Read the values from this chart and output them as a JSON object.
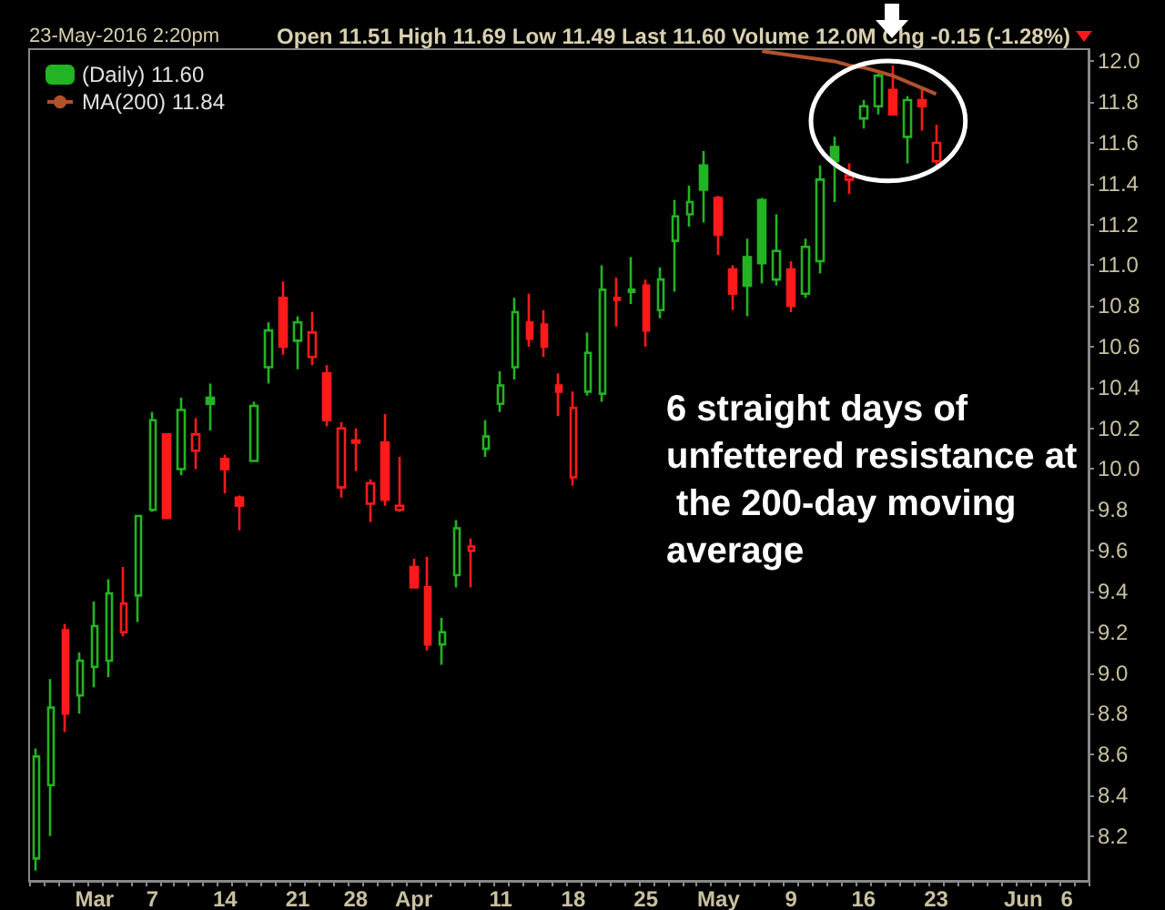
{
  "chart_data": {
    "type": "candlestick",
    "annotations": [
      "23-May-2016 2:20pm",
      "Open 11.51 High 11.69 Low 11.49 Last 11.60 Volume 12.0M Chg -0.15 (-1.28%)",
      "6 straight days of unfettered resistance at the 200-day moving average"
    ],
    "categories": [
      null,
      null,
      null,
      null,
      "Mar",
      null,
      null,
      null,
      "7",
      null,
      null,
      null,
      null,
      "14",
      null,
      null,
      null,
      null,
      "21",
      null,
      null,
      null,
      "28",
      null,
      null,
      null,
      "Apr",
      null,
      null,
      null,
      null,
      null,
      "11",
      null,
      null,
      null,
      null,
      "18",
      null,
      null,
      null,
      null,
      "25",
      null,
      null,
      null,
      null,
      "May",
      null,
      null,
      null,
      null,
      "9",
      null,
      null,
      null,
      null,
      "16",
      null,
      null,
      null,
      null,
      "23",
      null,
      null,
      null,
      null,
      null,
      "Jun",
      null,
      null,
      "6",
      null
    ],
    "series": [
      {
        "type": "candlestick",
        "name": "(Daily) 11.60",
        "ohlc": [
          [
            8.09,
            8.63,
            8.03,
            8.59
          ],
          [
            8.45,
            8.97,
            8.2,
            8.83
          ],
          [
            9.21,
            9.24,
            8.71,
            8.8
          ],
          [
            8.89,
            9.1,
            8.8,
            9.06
          ],
          [
            9.03,
            9.35,
            8.93,
            9.23
          ],
          [
            9.06,
            9.46,
            8.98,
            9.39
          ],
          [
            9.2,
            9.52,
            9.18,
            9.34
          ],
          [
            9.38,
            9.77,
            9.25,
            9.77
          ],
          [
            9.8,
            10.28,
            9.79,
            10.24
          ],
          [
            10.17,
            10.17,
            9.76,
            9.76
          ],
          [
            10.0,
            10.35,
            9.97,
            10.29
          ],
          [
            10.09,
            10.25,
            10.0,
            10.17
          ],
          [
            10.35,
            10.42,
            10.19,
            10.32
          ],
          [
            10.05,
            10.07,
            9.88,
            10.0
          ],
          [
            9.86,
            9.87,
            9.7,
            9.82
          ],
          [
            10.04,
            10.33,
            10.04,
            10.31
          ],
          [
            10.5,
            10.72,
            10.42,
            10.68
          ],
          [
            10.84,
            10.92,
            10.56,
            10.6
          ],
          [
            10.63,
            10.75,
            10.49,
            10.72
          ],
          [
            10.55,
            10.77,
            10.51,
            10.67
          ],
          [
            10.47,
            10.51,
            10.21,
            10.24
          ],
          [
            9.91,
            10.23,
            9.86,
            10.2
          ],
          [
            10.14,
            10.2,
            9.99,
            10.13
          ],
          [
            9.83,
            9.95,
            9.74,
            9.93
          ],
          [
            10.13,
            10.27,
            9.82,
            9.85
          ],
          [
            9.8,
            10.06,
            9.79,
            9.82
          ],
          [
            9.52,
            9.56,
            9.42,
            9.42
          ],
          [
            9.42,
            9.57,
            9.11,
            9.14
          ],
          [
            9.14,
            9.27,
            9.04,
            9.2
          ],
          [
            9.48,
            9.75,
            9.42,
            9.71
          ],
          [
            9.6,
            9.66,
            9.42,
            9.62
          ],
          [
            10.1,
            10.24,
            10.06,
            10.16
          ],
          [
            10.32,
            10.48,
            10.28,
            10.41
          ],
          [
            10.5,
            10.84,
            10.44,
            10.77
          ],
          [
            10.72,
            10.86,
            10.6,
            10.64
          ],
          [
            10.71,
            10.78,
            10.55,
            10.6
          ],
          [
            10.41,
            10.47,
            10.26,
            10.38
          ],
          [
            9.96,
            10.38,
            9.92,
            10.3
          ],
          [
            10.38,
            10.67,
            10.36,
            10.57
          ],
          [
            10.37,
            11.0,
            10.33,
            10.88
          ],
          [
            10.84,
            10.94,
            10.7,
            10.83
          ],
          [
            10.88,
            11.04,
            10.81,
            10.87
          ],
          [
            10.9,
            10.93,
            10.6,
            10.68
          ],
          [
            10.78,
            10.99,
            10.74,
            10.93
          ],
          [
            11.12,
            11.32,
            10.87,
            11.24
          ],
          [
            11.25,
            11.39,
            11.19,
            11.31
          ],
          [
            11.49,
            11.56,
            11.21,
            11.37
          ],
          [
            11.33,
            11.34,
            11.05,
            11.15
          ],
          [
            10.98,
            11.0,
            10.78,
            10.86
          ],
          [
            11.04,
            11.13,
            10.75,
            10.9
          ],
          [
            11.32,
            11.33,
            10.91,
            11.01
          ],
          [
            10.93,
            11.25,
            10.9,
            11.07
          ],
          [
            10.98,
            11.02,
            10.77,
            10.8
          ],
          [
            10.86,
            11.13,
            10.84,
            11.09
          ],
          [
            11.02,
            11.49,
            10.96,
            11.42
          ],
          [
            11.58,
            11.63,
            11.31,
            11.51
          ],
          [
            11.42,
            11.5,
            11.35,
            11.44
          ],
          [
            11.72,
            11.81,
            11.67,
            11.78
          ],
          [
            11.78,
            11.94,
            11.74,
            11.93
          ],
          [
            11.86,
            11.98,
            11.74,
            11.74
          ],
          [
            11.63,
            11.83,
            11.5,
            11.81
          ],
          [
            11.81,
            11.87,
            11.66,
            11.78
          ],
          [
            11.51,
            11.69,
            11.49,
            11.6
          ],
          null,
          null,
          null,
          null,
          null,
          null,
          null,
          null,
          null,
          null
        ],
        "colors": [
          "#22b422",
          "#22b422",
          "#ff1a1a",
          "#22b422",
          "#22b422",
          "#22b422",
          "#ff1a1a",
          "#22b422",
          "#22b422",
          "#ff1a1a",
          "#22b422",
          "#ff1a1a",
          "#22b422",
          "#ff1a1a",
          "#ff1a1a",
          "#22b422",
          "#22b422",
          "#ff1a1a",
          "#22b422",
          "#ff1a1a",
          "#ff1a1a",
          "#ff1a1a",
          "#ff1a1a",
          "#ff1a1a",
          "#ff1a1a",
          "#ff1a1a",
          "#ff1a1a",
          "#ff1a1a",
          "#22b422",
          "#22b422",
          "#ff1a1a",
          "#22b422",
          "#22b422",
          "#22b422",
          "#ff1a1a",
          "#ff1a1a",
          "#ff1a1a",
          "#ff1a1a",
          "#22b422",
          "#22b422",
          "#ff1a1a",
          "#22b422",
          "#ff1a1a",
          "#22b422",
          "#22b422",
          "#22b422",
          "#22b422",
          "#ff1a1a",
          "#ff1a1a",
          "#22b422",
          "#22b422",
          "#22b422",
          "#ff1a1a",
          "#22b422",
          "#22b422",
          "#22b422",
          "#ff1a1a",
          "#22b422",
          "#22b422",
          "#ff1a1a",
          "#22b422",
          "#ff1a1a",
          "#ff1a1a",
          null,
          null,
          null,
          null,
          null,
          null,
          null,
          null,
          null,
          null
        ]
      },
      {
        "type": "line",
        "name": "MA(200) 11.84",
        "color": "#b0522a",
        "values": [
          null,
          null,
          null,
          null,
          null,
          null,
          null,
          null,
          null,
          null,
          null,
          null,
          null,
          null,
          null,
          null,
          null,
          null,
          null,
          null,
          null,
          null,
          null,
          null,
          null,
          null,
          null,
          null,
          null,
          null,
          null,
          null,
          null,
          null,
          null,
          null,
          null,
          null,
          null,
          null,
          null,
          null,
          null,
          null,
          null,
          null,
          null,
          null,
          null,
          null,
          12.05,
          12.04,
          12.03,
          12.02,
          12.01,
          12.0,
          11.98,
          11.97,
          11.95,
          11.93,
          11.9,
          11.87,
          11.84,
          null,
          null,
          null,
          null,
          null,
          null,
          null,
          null,
          null,
          null
        ]
      }
    ],
    "ylim": [
      7.98,
      12.06
    ],
    "yticks": [
      8.2,
      8.4,
      8.6,
      8.8,
      {
        "value": 9,
        "label": "9.0"
      },
      9.2,
      9.4,
      9.6,
      9.8,
      {
        "value": 10,
        "label": "10.0"
      },
      10.2,
      10.4,
      10.6,
      10.8,
      {
        "value": 11,
        "label": "11.0"
      },
      11.2,
      11.4,
      11.6,
      11.8,
      {
        "value": 12,
        "label": "12.0"
      }
    ],
    "legend": "top left",
    "grid": false,
    "marker": "none"
  }
}
